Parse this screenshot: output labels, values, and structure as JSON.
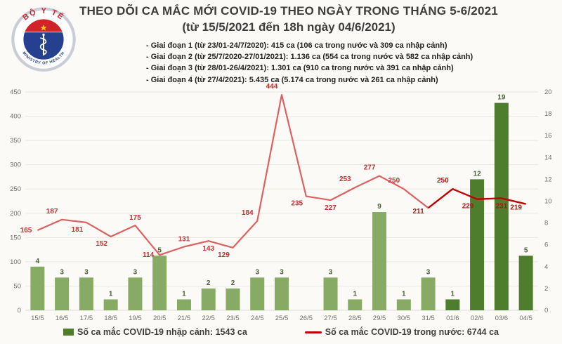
{
  "logo": {
    "top_text": "BỘ Y TẾ",
    "bottom_text": "MINISTRY OF HEALTH"
  },
  "header": {
    "title": "THEO DÕI CA MẮC MỚI COVID-19 THEO NGÀY TRONG THÁNG 5-6/2021",
    "subtitle": "(từ 15/5/2021 đến 18h ngày 04/6/2021)",
    "notes": [
      "- Giai đoạn 1 (từ 23/01-24/7/2020): 415 ca (106 ca trong nước và 309 ca nhập cảnh)",
      "- Giai đoạn 2 (từ 25/7/2020-27/01/2021): 1.136 ca (554 ca trong nước và 582 ca nhập cảnh)",
      "- Giai đoạn 3 (từ 28/01-26/4/2021): 1.301 ca (910 ca trong nước và 391 ca nhập cảnh)",
      "- Giai đoạn 4 (từ 27/4/2021): 5.435 ca (5.174 ca trong nước và 261 ca nhập cảnh)"
    ]
  },
  "legend": {
    "bars_label": "Số ca mắc COVID-19 nhập cảnh: 1543 ca",
    "line_label": "Số ca mắc COVID-19 trong nước: 6744 ca"
  },
  "colors": {
    "bar_light": "#87aa64",
    "bar_dark": "#4e7e2d",
    "line_light": "#de6060",
    "line_dark": "#c00000",
    "bar_label": "#4a6138",
    "line_label_light": "#c23030",
    "line_label_dark": "#b01515",
    "axis_text": "#6f6f6f",
    "gridline": "#e9e7e2",
    "baseline": "#dddbd6",
    "emblem_red": "#d2232a",
    "emblem_blue": "#24408e",
    "emblem_gold": "#f5c518",
    "ring_gray": "#c9cdd5"
  },
  "chart_data": {
    "type": "bar+line combo",
    "title": "THEO DÕI CA MẮC MỚI COVID-19 THEO NGÀY TRONG THÁNG 5-6/2021",
    "subtitle": "(từ 15/5/2021 đến 18h ngày 04/6/2021)",
    "grid": true,
    "legend_position": "bottom",
    "categories": [
      "15/5",
      "16/5",
      "17/5",
      "18/5",
      "19/5",
      "20/5",
      "21/5",
      "22/5",
      "23/5",
      "24/5",
      "25/5",
      "26/5",
      "27/5",
      "28/5",
      "29/5",
      "30/5",
      "31/5",
      "01/6",
      "02/6",
      "03/6",
      "04/5"
    ],
    "left_axis": {
      "min": 0,
      "max": 450,
      "step": 50,
      "applies_to": "line"
    },
    "right_axis": {
      "min": 0,
      "max": 20,
      "step": 2,
      "applies_to": "bars"
    },
    "series": [
      {
        "name": "Số ca mắc COVID-19 nhập cảnh",
        "type": "bar",
        "axis": "right",
        "values": [
          4,
          3,
          3,
          1,
          3,
          5,
          1,
          2,
          2,
          3,
          3,
          0,
          3,
          1,
          9,
          1,
          3,
          1,
          12,
          19,
          5
        ],
        "highlight_from_index": 17
      },
      {
        "name": "Số ca mắc COVID-19 trong nước",
        "type": "line",
        "axis": "left",
        "values": [
          165,
          187,
          181,
          152,
          175,
          114,
          131,
          143,
          129,
          184,
          444,
          235,
          227,
          253,
          277,
          250,
          211,
          250,
          229,
          231,
          219
        ],
        "highlight_from_index": 16,
        "label_pos": [
          "l",
          "al",
          "bl",
          "bl",
          "a",
          "l",
          "a",
          "b",
          "bl",
          "al",
          "al",
          "bl",
          "b",
          "al",
          "al",
          "al",
          "bs",
          "al",
          "bl",
          "b",
          "bs"
        ]
      }
    ]
  }
}
